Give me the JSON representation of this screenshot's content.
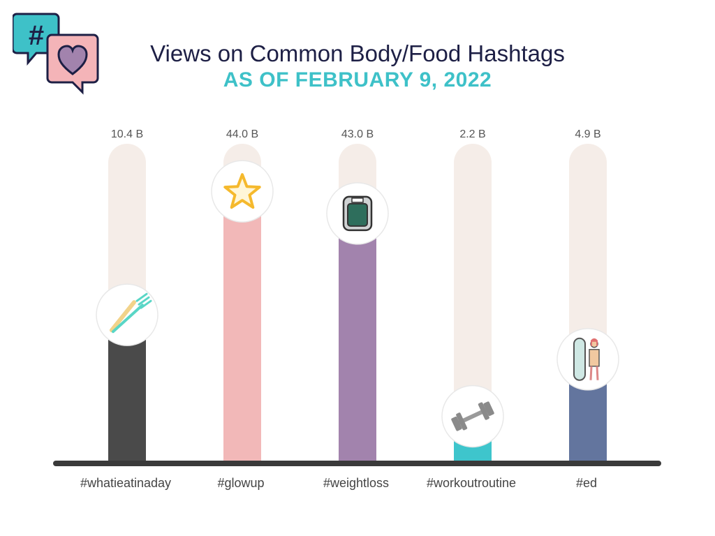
{
  "header": {
    "title": "Views on Common Body/Food Hashtags",
    "subtitle": "AS OF FEBRUARY 9, 2022",
    "logo_icon": "hashtag-heart-speech-bubbles-icon"
  },
  "chart_data": {
    "type": "bar",
    "title": "Views on Common Body/Food Hashtags",
    "subtitle": "AS OF FEBRUARY 9, 2022",
    "categories": [
      "#whatieatinaday",
      "#glowup",
      "#weightloss",
      "#workoutroutine",
      "#ed"
    ],
    "value_labels": [
      "10.4 B",
      "44.0 B",
      "43.0 B",
      "2.2 B",
      "4.9 B"
    ],
    "series": [
      {
        "values": [
          10.4,
          44.0,
          43.0,
          2.2,
          4.9
        ]
      }
    ],
    "unit": "B",
    "fill_fractions": [
      0.46,
      0.85,
      0.78,
      0.14,
      0.32
    ],
    "colors": [
      "#4a4a4a",
      "#f2b8b8",
      "#a283ad",
      "#3ec5cc",
      "#63759e"
    ],
    "track_color": "#f5ede8",
    "baseline_color": "#3a3a3a",
    "icons": [
      "fork-knife-icon",
      "star-icon",
      "scale-icon",
      "dumbbell-icon",
      "mirror-body-icon"
    ],
    "xlabel": "",
    "ylabel": "",
    "grid": false,
    "legend": "none"
  }
}
